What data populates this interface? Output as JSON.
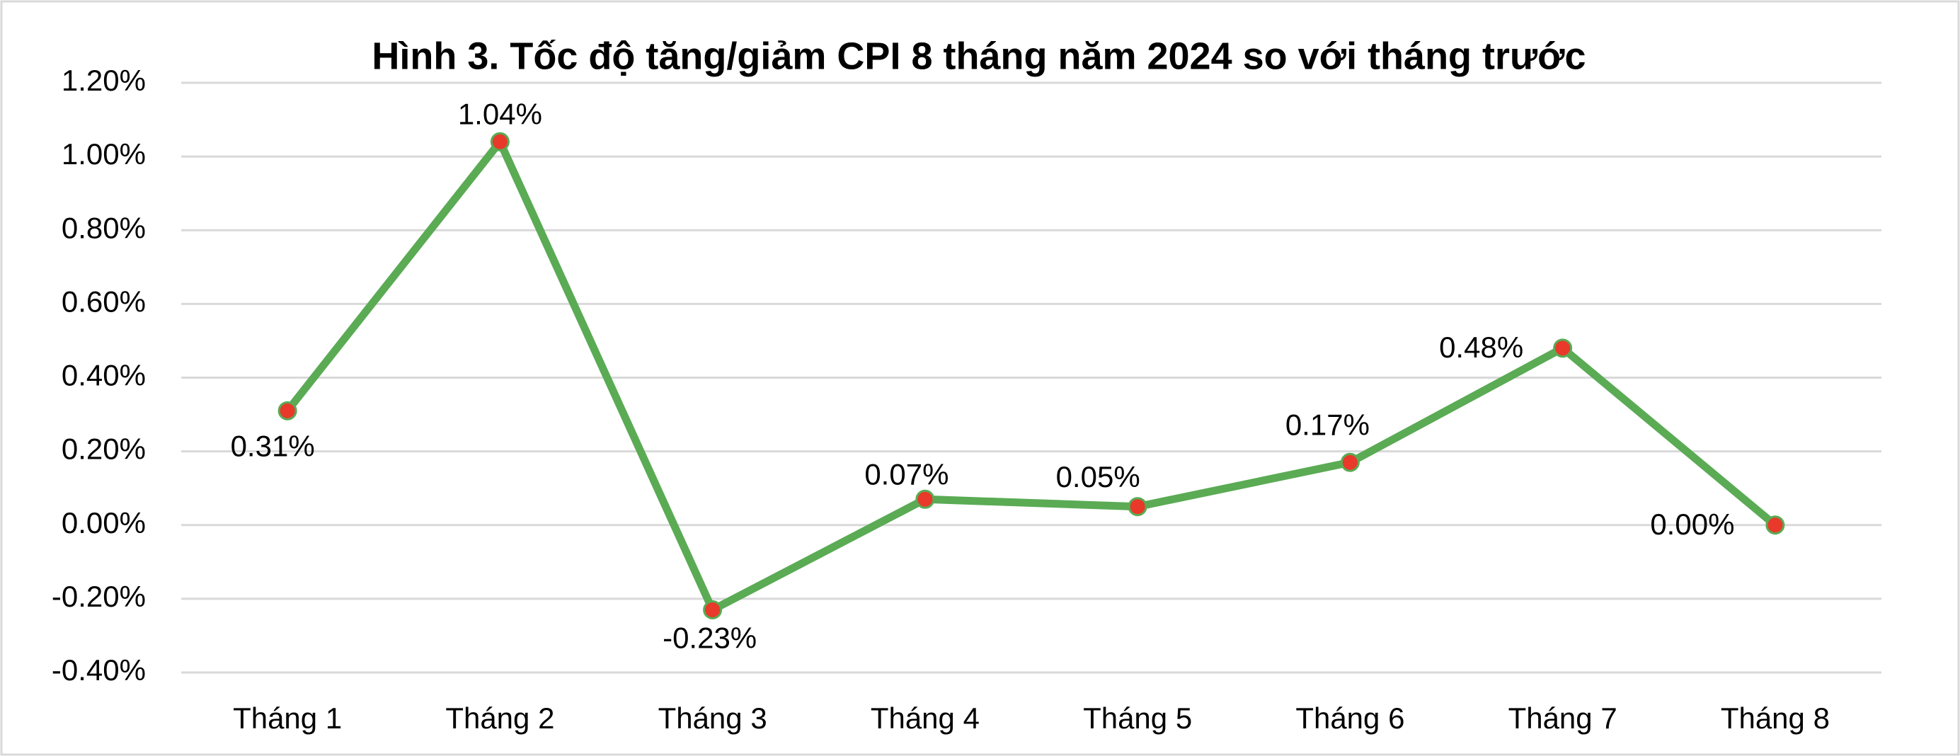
{
  "chart_data": {
    "type": "line",
    "title": "Hình 3. Tốc độ tăng/giảm CPI 8 tháng năm 2024 so với tháng trước",
    "categories": [
      "Tháng 1",
      "Tháng 2",
      "Tháng 3",
      "Tháng 4",
      "Tháng 5",
      "Tháng 6",
      "Tháng 7",
      "Tháng 8"
    ],
    "series": [
      {
        "color": "#5aab54",
        "marker_color": "#e8392a",
        "values": [
          0.31,
          1.04,
          -0.23,
          0.07,
          0.05,
          0.17,
          0.48,
          0.0
        ],
        "value_labels": [
          "0.31%",
          "1.04%",
          "-0.23%",
          "0.07%",
          "0.05%",
          "0.17%",
          "0.48%",
          "0.00%"
        ]
      }
    ],
    "ylim": [
      -0.4,
      1.2
    ],
    "yticks": [
      {
        "value": -0.4,
        "label": "-0.40%"
      },
      {
        "value": -0.2,
        "label": "-0.20%"
      },
      {
        "value": 0,
        "label": "0.00%"
      },
      {
        "value": 0.2,
        "label": "0.20%"
      },
      {
        "value": 0.4,
        "label": "0.40%"
      },
      {
        "value": 0.6,
        "label": "0.60%"
      },
      {
        "value": 0.8,
        "label": "0.80%"
      },
      {
        "value": 1.0,
        "label": "1.00%"
      },
      {
        "value": 1.2,
        "label": "1.20%"
      }
    ],
    "grid": true
  }
}
